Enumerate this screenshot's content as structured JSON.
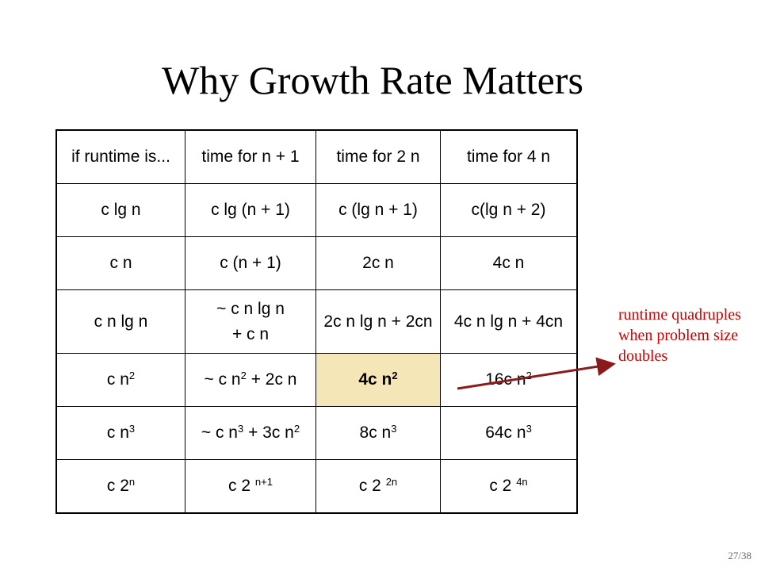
{
  "slide": {
    "title": "Why Growth Rate Matters",
    "page_number": "27/38",
    "annotation": "runtime quadruples when problem size doubles",
    "annotation_color": "#cc0000",
    "highlight_color": "#f5e6b8"
  },
  "table": {
    "headers": [
      "if runtime is...",
      "time for n + 1",
      "time for 2 n",
      "time for 4 n"
    ],
    "rows": [
      [
        {
          "text": "c lg n"
        },
        {
          "text": "c lg (n + 1)"
        },
        {
          "text": "c (lg n + 1)"
        },
        {
          "text": "c(lg n + 2)"
        }
      ],
      [
        {
          "text": "c n"
        },
        {
          "text": "c (n + 1)"
        },
        {
          "text": "2c n"
        },
        {
          "text": "4c n"
        }
      ],
      [
        {
          "text": "c n lg n"
        },
        {
          "lines": [
            "~ c n lg n",
            "+ c n"
          ]
        },
        {
          "text": "2c n lg n + 2cn"
        },
        {
          "text": "4c n lg n + 4cn"
        }
      ],
      [
        {
          "parts": [
            {
              "t": "c n"
            },
            {
              "sup": "2"
            }
          ]
        },
        {
          "parts": [
            {
              "t": "~ c n"
            },
            {
              "sup": "2"
            },
            {
              "t": " + 2c n"
            }
          ]
        },
        {
          "parts": [
            {
              "t": "4c n"
            },
            {
              "sup": "2"
            }
          ],
          "highlight": true
        },
        {
          "parts": [
            {
              "t": "16c n"
            },
            {
              "sup": "2"
            }
          ]
        }
      ],
      [
        {
          "parts": [
            {
              "t": "c n"
            },
            {
              "sup": "3"
            }
          ]
        },
        {
          "parts": [
            {
              "t": "~ c n"
            },
            {
              "sup": "3"
            },
            {
              "t": " + 3c n"
            },
            {
              "sup": "2"
            }
          ]
        },
        {
          "parts": [
            {
              "t": "8c n"
            },
            {
              "sup": "3"
            }
          ]
        },
        {
          "parts": [
            {
              "t": "64c n"
            },
            {
              "sup": "3"
            }
          ]
        }
      ],
      [
        {
          "parts": [
            {
              "t": "c 2"
            },
            {
              "sup": "n"
            }
          ]
        },
        {
          "parts": [
            {
              "t": "c 2 "
            },
            {
              "sup": "n+1"
            }
          ]
        },
        {
          "parts": [
            {
              "t": "c 2 "
            },
            {
              "sup": "2n"
            }
          ]
        },
        {
          "parts": [
            {
              "t": "c 2 "
            },
            {
              "sup": "4n"
            }
          ]
        }
      ]
    ]
  }
}
